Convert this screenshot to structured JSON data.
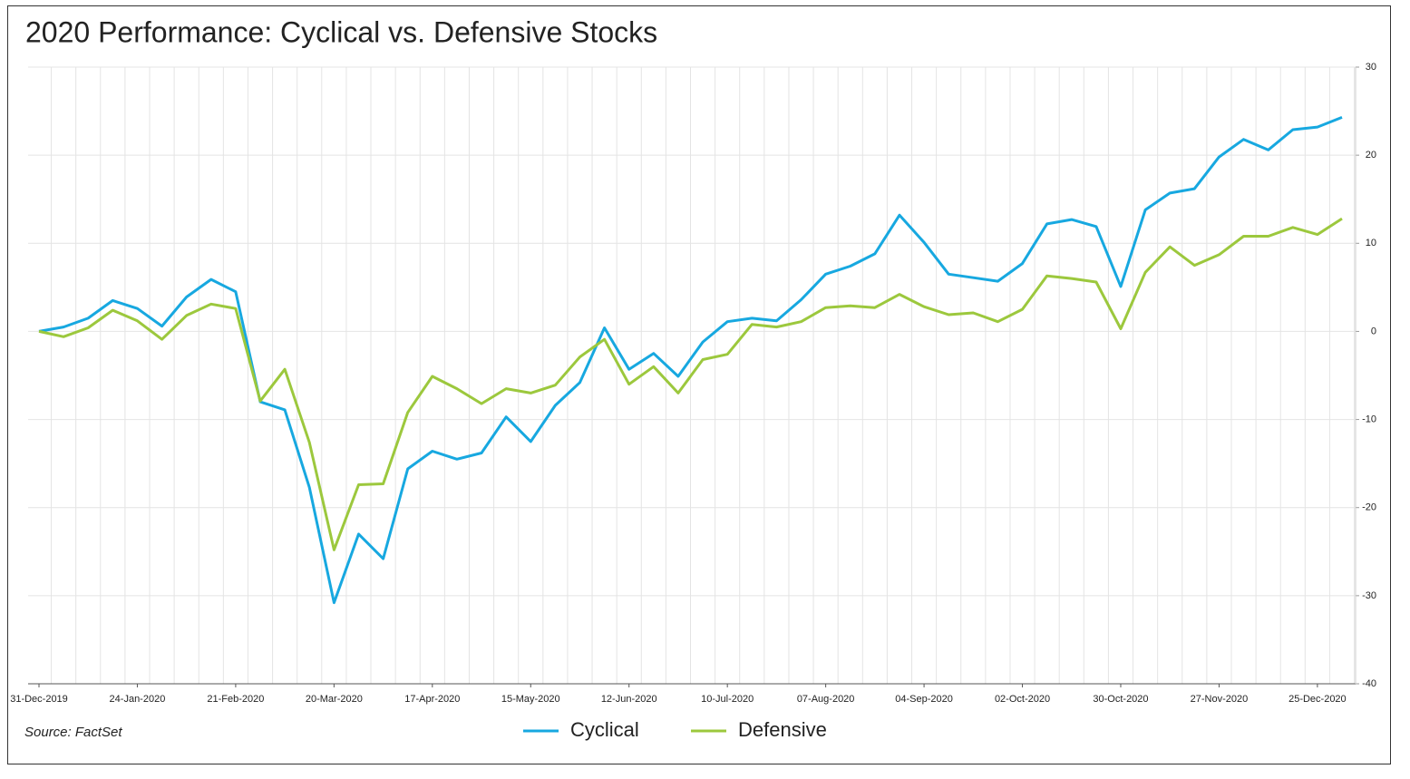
{
  "chart_data": {
    "type": "line",
    "title": "2020 Performance: Cyclical vs. Defensive Stocks",
    "source": "Source: FactSet",
    "categories": [
      "31-Dec-2019",
      null,
      null,
      null,
      "24-Jan-2020",
      null,
      null,
      null,
      "21-Feb-2020",
      null,
      null,
      null,
      "20-Mar-2020",
      null,
      null,
      null,
      "17-Apr-2020",
      null,
      null,
      null,
      "15-May-2020",
      null,
      null,
      null,
      "12-Jun-2020",
      null,
      null,
      null,
      "10-Jul-2020",
      null,
      null,
      null,
      "07-Aug-2020",
      null,
      null,
      null,
      "04-Sep-2020",
      null,
      null,
      null,
      "02-Oct-2020",
      null,
      null,
      null,
      "30-Oct-2020",
      null,
      null,
      null,
      "27-Nov-2020",
      null,
      null,
      null,
      "25-Dec-2020",
      null
    ],
    "series": [
      {
        "name": "Cyclical",
        "color": "#17a8e0",
        "values": [
          0,
          0.5,
          1.5,
          3.5,
          2.6,
          0.6,
          3.9,
          5.9,
          4.5,
          -8.0,
          -8.9,
          -17.7,
          -30.8,
          -23.0,
          -25.8,
          -15.6,
          -13.6,
          -14.5,
          -13.8,
          -9.7,
          -12.5,
          -8.4,
          -5.8,
          0.4,
          -4.3,
          -2.5,
          -5.1,
          -1.2,
          1.1,
          1.5,
          1.2,
          3.6,
          6.5,
          7.4,
          8.8,
          13.2,
          10.1,
          6.5,
          6.1,
          5.7,
          7.7,
          12.2,
          12.7,
          11.9,
          5.1,
          13.8,
          15.7,
          16.2,
          19.8,
          21.8,
          20.6,
          22.9,
          23.2,
          24.3
        ]
      },
      {
        "name": "Defensive",
        "color": "#9cc83d",
        "values": [
          0,
          -0.6,
          0.4,
          2.4,
          1.2,
          -0.9,
          1.8,
          3.1,
          2.6,
          -7.9,
          -4.3,
          -12.6,
          -24.8,
          -17.4,
          -17.3,
          -9.2,
          -5.1,
          -6.5,
          -8.2,
          -6.5,
          -7.0,
          -6.1,
          -2.9,
          -0.9,
          -6.0,
          -4.0,
          -7.0,
          -3.2,
          -2.6,
          0.8,
          0.5,
          1.1,
          2.7,
          2.9,
          2.7,
          4.2,
          2.8,
          1.9,
          2.1,
          1.1,
          2.5,
          6.3,
          6.0,
          5.6,
          0.3,
          6.7,
          9.6,
          7.5,
          8.7,
          10.8,
          10.8,
          11.8,
          11.0,
          12.8
        ]
      }
    ],
    "ylim": [
      -40,
      30
    ],
    "yticks": [
      -40,
      -30,
      -20,
      -10,
      0,
      10,
      20,
      30
    ],
    "grid": true,
    "legend": "bottom"
  }
}
